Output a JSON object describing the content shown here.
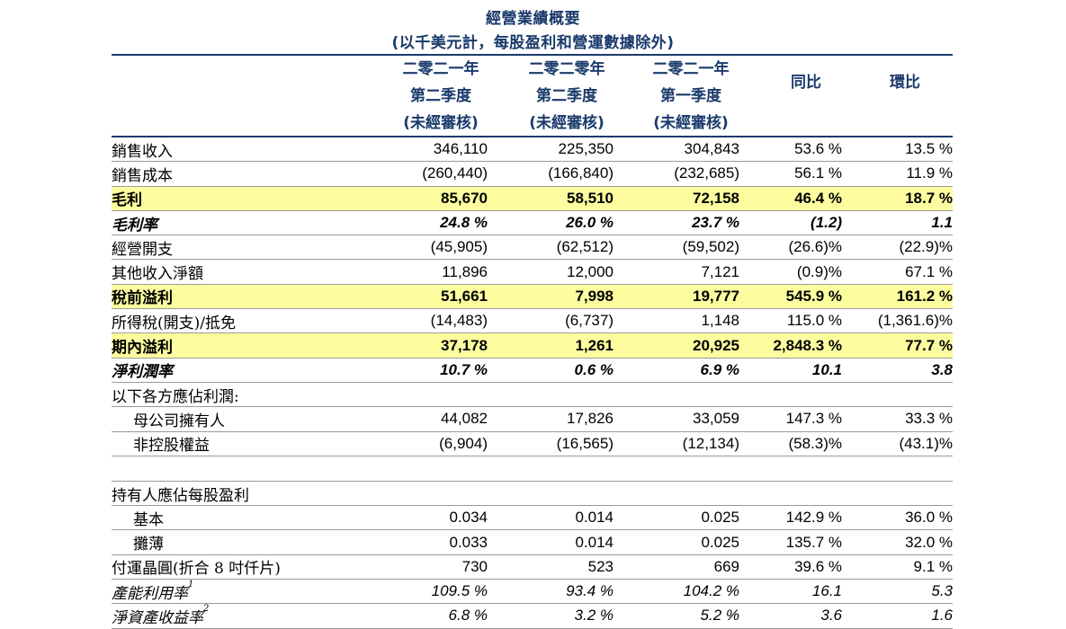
{
  "title": "經營業績概要",
  "subtitle": "(以千美元計，每股盈利和營運數據除外)",
  "columns": [
    {
      "line1": "二零二一年",
      "line2": "第二季度",
      "line3": "(未經審核)"
    },
    {
      "line1": "二零二零年",
      "line2": "第二季度",
      "line3": "(未經審核)"
    },
    {
      "line1": "二零二一年",
      "line2": "第一季度",
      "line3": "(未經審核)"
    },
    {
      "line1": "",
      "line2": "同比",
      "line3": ""
    },
    {
      "line1": "",
      "line2": "環比",
      "line3": ""
    }
  ],
  "rows": [
    {
      "label": "銷售收入",
      "cells": [
        "346,110",
        "225,350",
        "304,843",
        "53.6 %",
        "13.5 %"
      ]
    },
    {
      "label": "銷售成本",
      "cells": [
        "(260,440)",
        "(166,840)",
        "(232,685)",
        "56.1 %",
        "11.9 %"
      ]
    },
    {
      "label": "毛利",
      "cells": [
        "85,670",
        "58,510",
        "72,158",
        "46.4 %",
        "18.7 %"
      ]
    },
    {
      "label": "毛利率",
      "cells": [
        "24.8 %",
        "26.0 %",
        "23.7 %",
        "(1.2)",
        "1.1"
      ]
    },
    {
      "label": "經營開支",
      "cells": [
        "(45,905)",
        "(62,512)",
        "(59,502)",
        "(26.6)%",
        "(22.9)%"
      ]
    },
    {
      "label": "其他收入淨額",
      "cells": [
        "11,896",
        "12,000",
        "7,121",
        "(0.9)%",
        "67.1 %"
      ]
    },
    {
      "label": "稅前溢利",
      "cells": [
        "51,661",
        "7,998",
        "19,777",
        "545.9 %",
        "161.2 %"
      ]
    },
    {
      "label": "所得稅(開支)/抵免",
      "cells": [
        "(14,483)",
        "(6,737)",
        "1,148",
        "115.0 %",
        "(1,361.6)%"
      ]
    },
    {
      "label": "期內溢利",
      "cells": [
        "37,178",
        "1,261",
        "20,925",
        "2,848.3 %",
        "77.7 %"
      ]
    },
    {
      "label": "淨利潤率",
      "cells": [
        "10.7 %",
        "0.6 %",
        "6.9 %",
        "10.1",
        "3.8"
      ]
    },
    {
      "label": "以下各方應佔利潤:",
      "cells": [
        "",
        "",
        "",
        "",
        ""
      ]
    },
    {
      "label": "母公司擁有人",
      "cells": [
        "44,082",
        "17,826",
        "33,059",
        "147.3 %",
        "33.3 %"
      ]
    },
    {
      "label": "非控股權益",
      "cells": [
        "(6,904)",
        "(16,565)",
        "(12,134)",
        "(58.3)%",
        "(43.1)%"
      ]
    },
    {
      "label": "",
      "cells": [
        "",
        "",
        "",
        "",
        ""
      ]
    },
    {
      "label": "持有人應佔每股盈利",
      "cells": [
        "",
        "",
        "",
        "",
        ""
      ]
    },
    {
      "label": "基本",
      "cells": [
        "0.034",
        "0.014",
        "0.025",
        "142.9 %",
        "36.0 %"
      ]
    },
    {
      "label": "攤薄",
      "cells": [
        "0.033",
        "0.014",
        "0.025",
        "135.7 %",
        "32.0 %"
      ]
    },
    {
      "label": "付運晶圓(折合 8 吋仟片)",
      "cells": [
        "730",
        "523",
        "669",
        "39.6 %",
        "9.1 %"
      ]
    },
    {
      "label": "產能利用率",
      "sup": "1",
      "cells": [
        "109.5 %",
        "93.4 %",
        "104.2 %",
        "16.1",
        "5.3"
      ]
    },
    {
      "label": "淨資產收益率",
      "sup": "2",
      "cells": [
        "6.8 %",
        "3.2 %",
        "5.2 %",
        "3.6",
        "1.6"
      ]
    }
  ]
}
